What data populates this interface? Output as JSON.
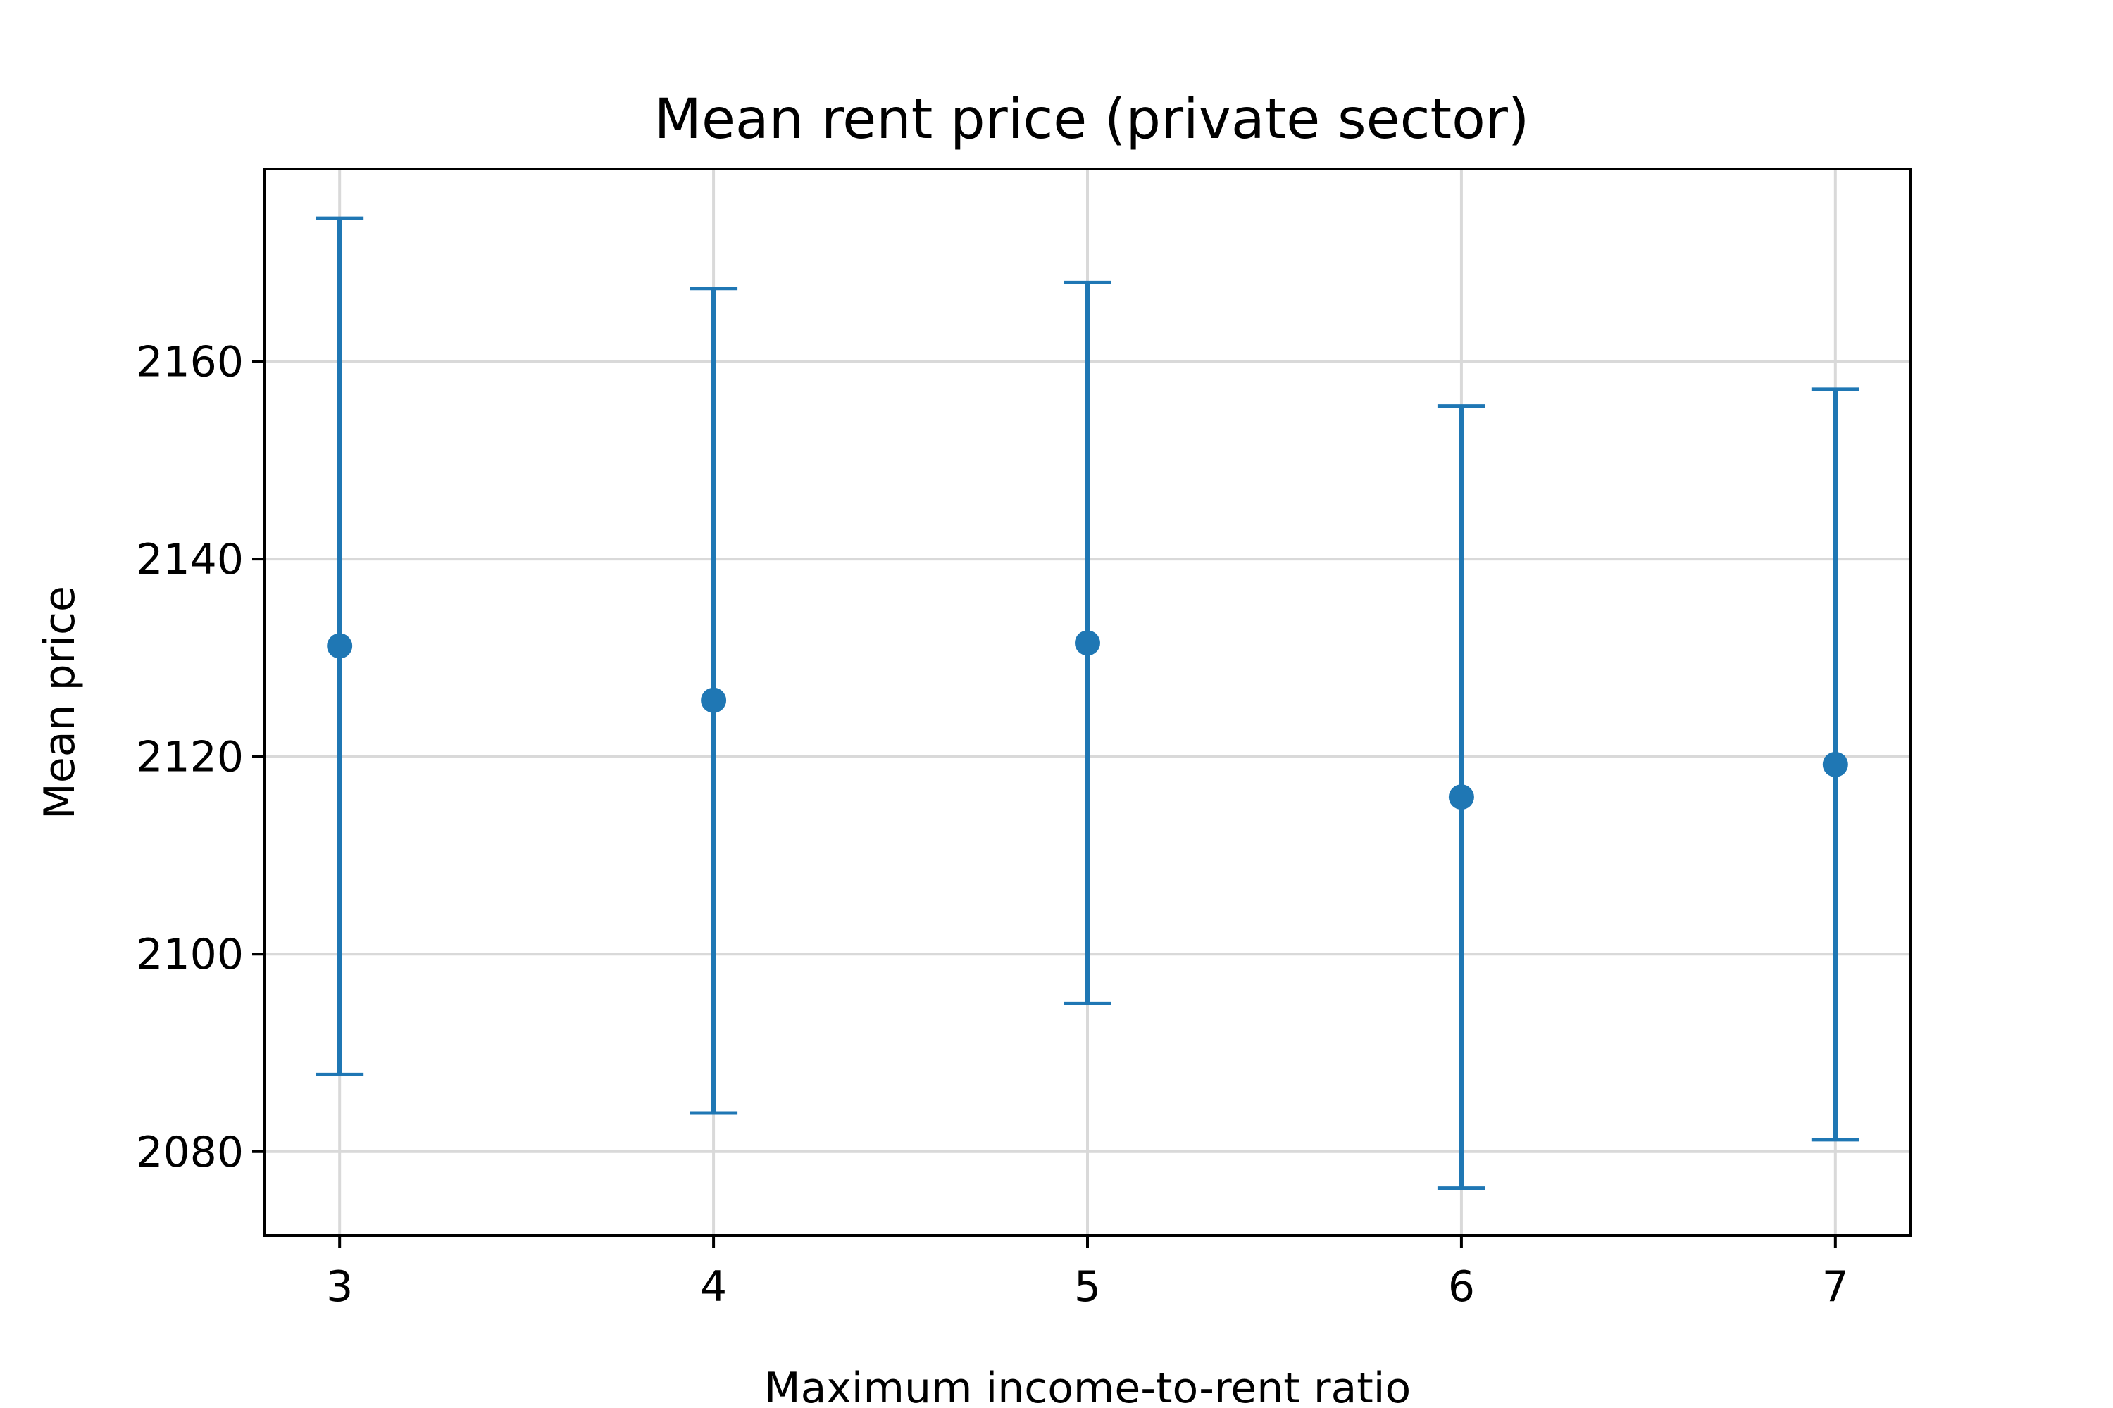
{
  "chart_data": {
    "type": "scatter",
    "title": "Mean rent price (private sector)",
    "xlabel": "Maximum income-to-rent ratio",
    "ylabel": "Mean price",
    "x": [
      3,
      4,
      5,
      6,
      7
    ],
    "series": [
      {
        "values": [
          2131.2,
          2125.7,
          2131.5,
          2115.9,
          2119.2
        ],
        "error_low": [
          2087.8,
          2083.9,
          2095.0,
          2076.3,
          2081.2
        ],
        "error_high": [
          2174.5,
          2167.4,
          2168.0,
          2155.5,
          2157.2
        ],
        "color": "#1f77b4"
      }
    ],
    "xlim": [
      2.8,
      7.2
    ],
    "ylim": [
      2071.5,
      2179.5
    ],
    "xticks": [
      3,
      4,
      5,
      6,
      7
    ],
    "yticks": [
      2080,
      2100,
      2120,
      2140,
      2160
    ],
    "grid": true
  }
}
